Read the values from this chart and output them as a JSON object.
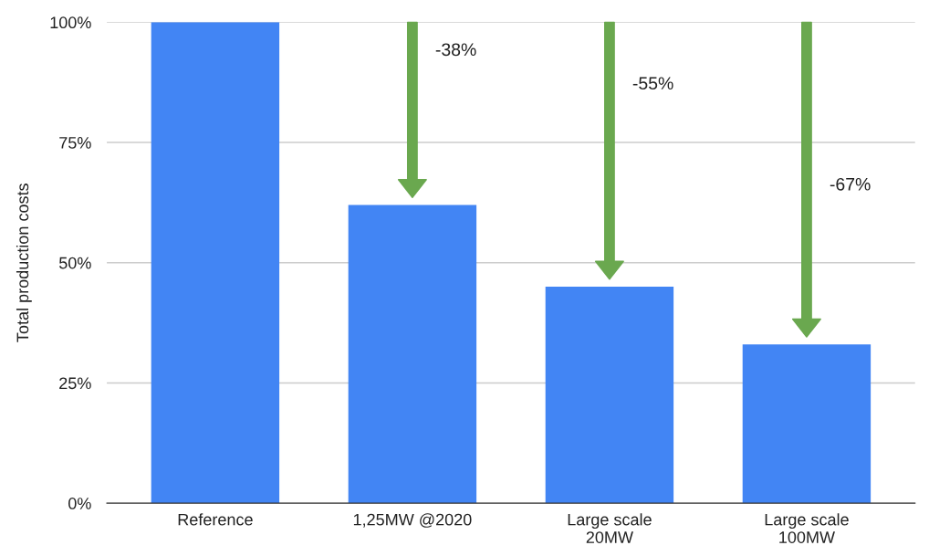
{
  "chart_data": {
    "type": "bar",
    "ylabel": "Total production costs",
    "categories": [
      "Reference",
      "1,25MW @2020",
      "Large scale\n20MW",
      "Large scale\n100MW"
    ],
    "values": [
      100,
      62,
      45,
      33
    ],
    "color": "#4285f4",
    "ylim": [
      0,
      100
    ],
    "yticks": [
      {
        "value": 0,
        "label": "0%"
      },
      {
        "value": 25,
        "label": "25%"
      },
      {
        "value": 50,
        "label": "50%"
      },
      {
        "value": 75,
        "label": "75%"
      },
      {
        "value": 100,
        "label": "100%"
      }
    ],
    "grid": "y",
    "annotations": [
      "-38%",
      "-55%",
      "-67%"
    ]
  }
}
